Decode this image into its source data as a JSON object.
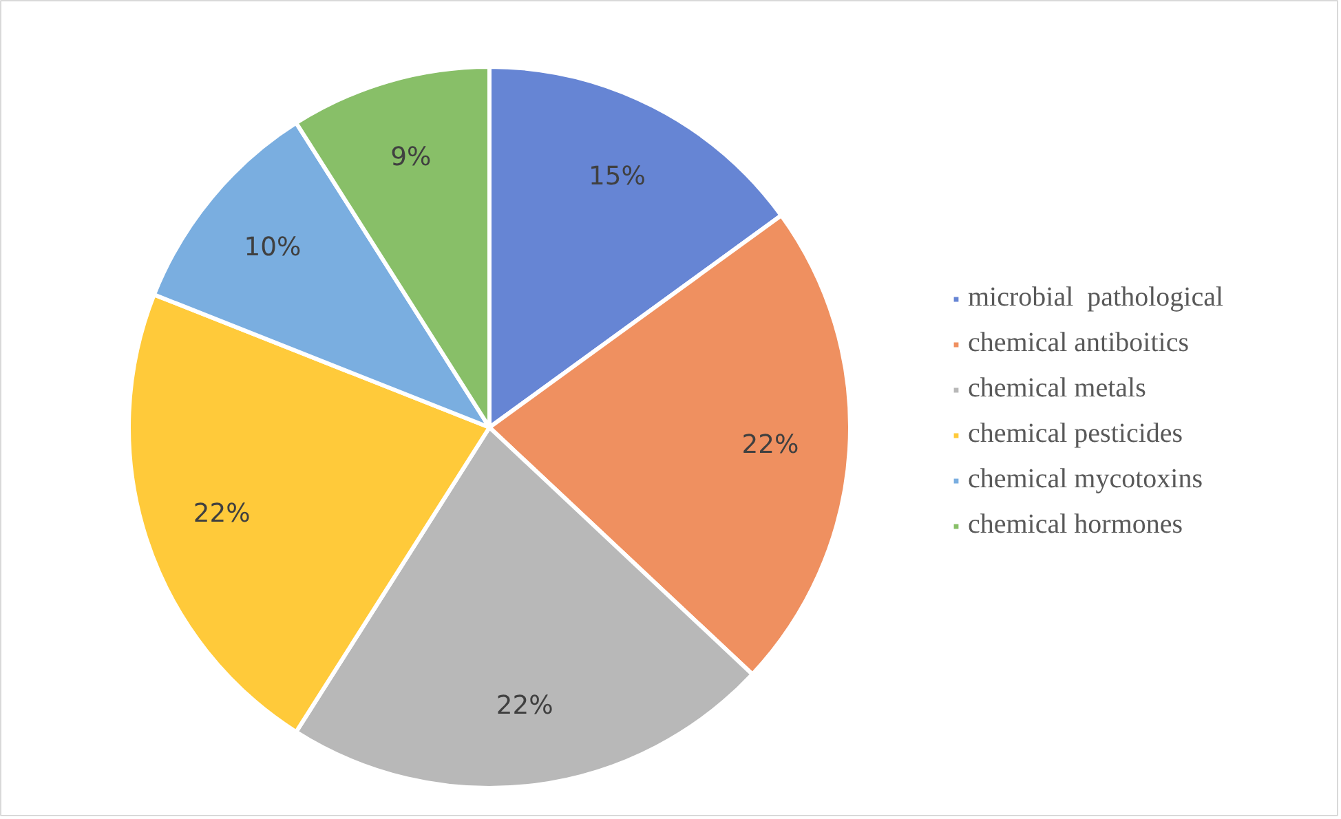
{
  "chart_data": {
    "type": "pie",
    "categories": [
      "microbial  pathological",
      "chemical antiboitics",
      "chemical metals",
      "chemical pesticides",
      "chemical mycotoxins",
      "chemical hormones"
    ],
    "values": [
      15,
      22,
      22,
      22,
      10,
      9
    ],
    "colors": [
      "#6685d4",
      "#ef9060",
      "#b8b8b8",
      "#ffca3a",
      "#7aaee0",
      "#88bf68"
    ],
    "value_labels": [
      "15%",
      "22%",
      "22%",
      "22%",
      "10%",
      "9%"
    ],
    "legend": "right"
  }
}
